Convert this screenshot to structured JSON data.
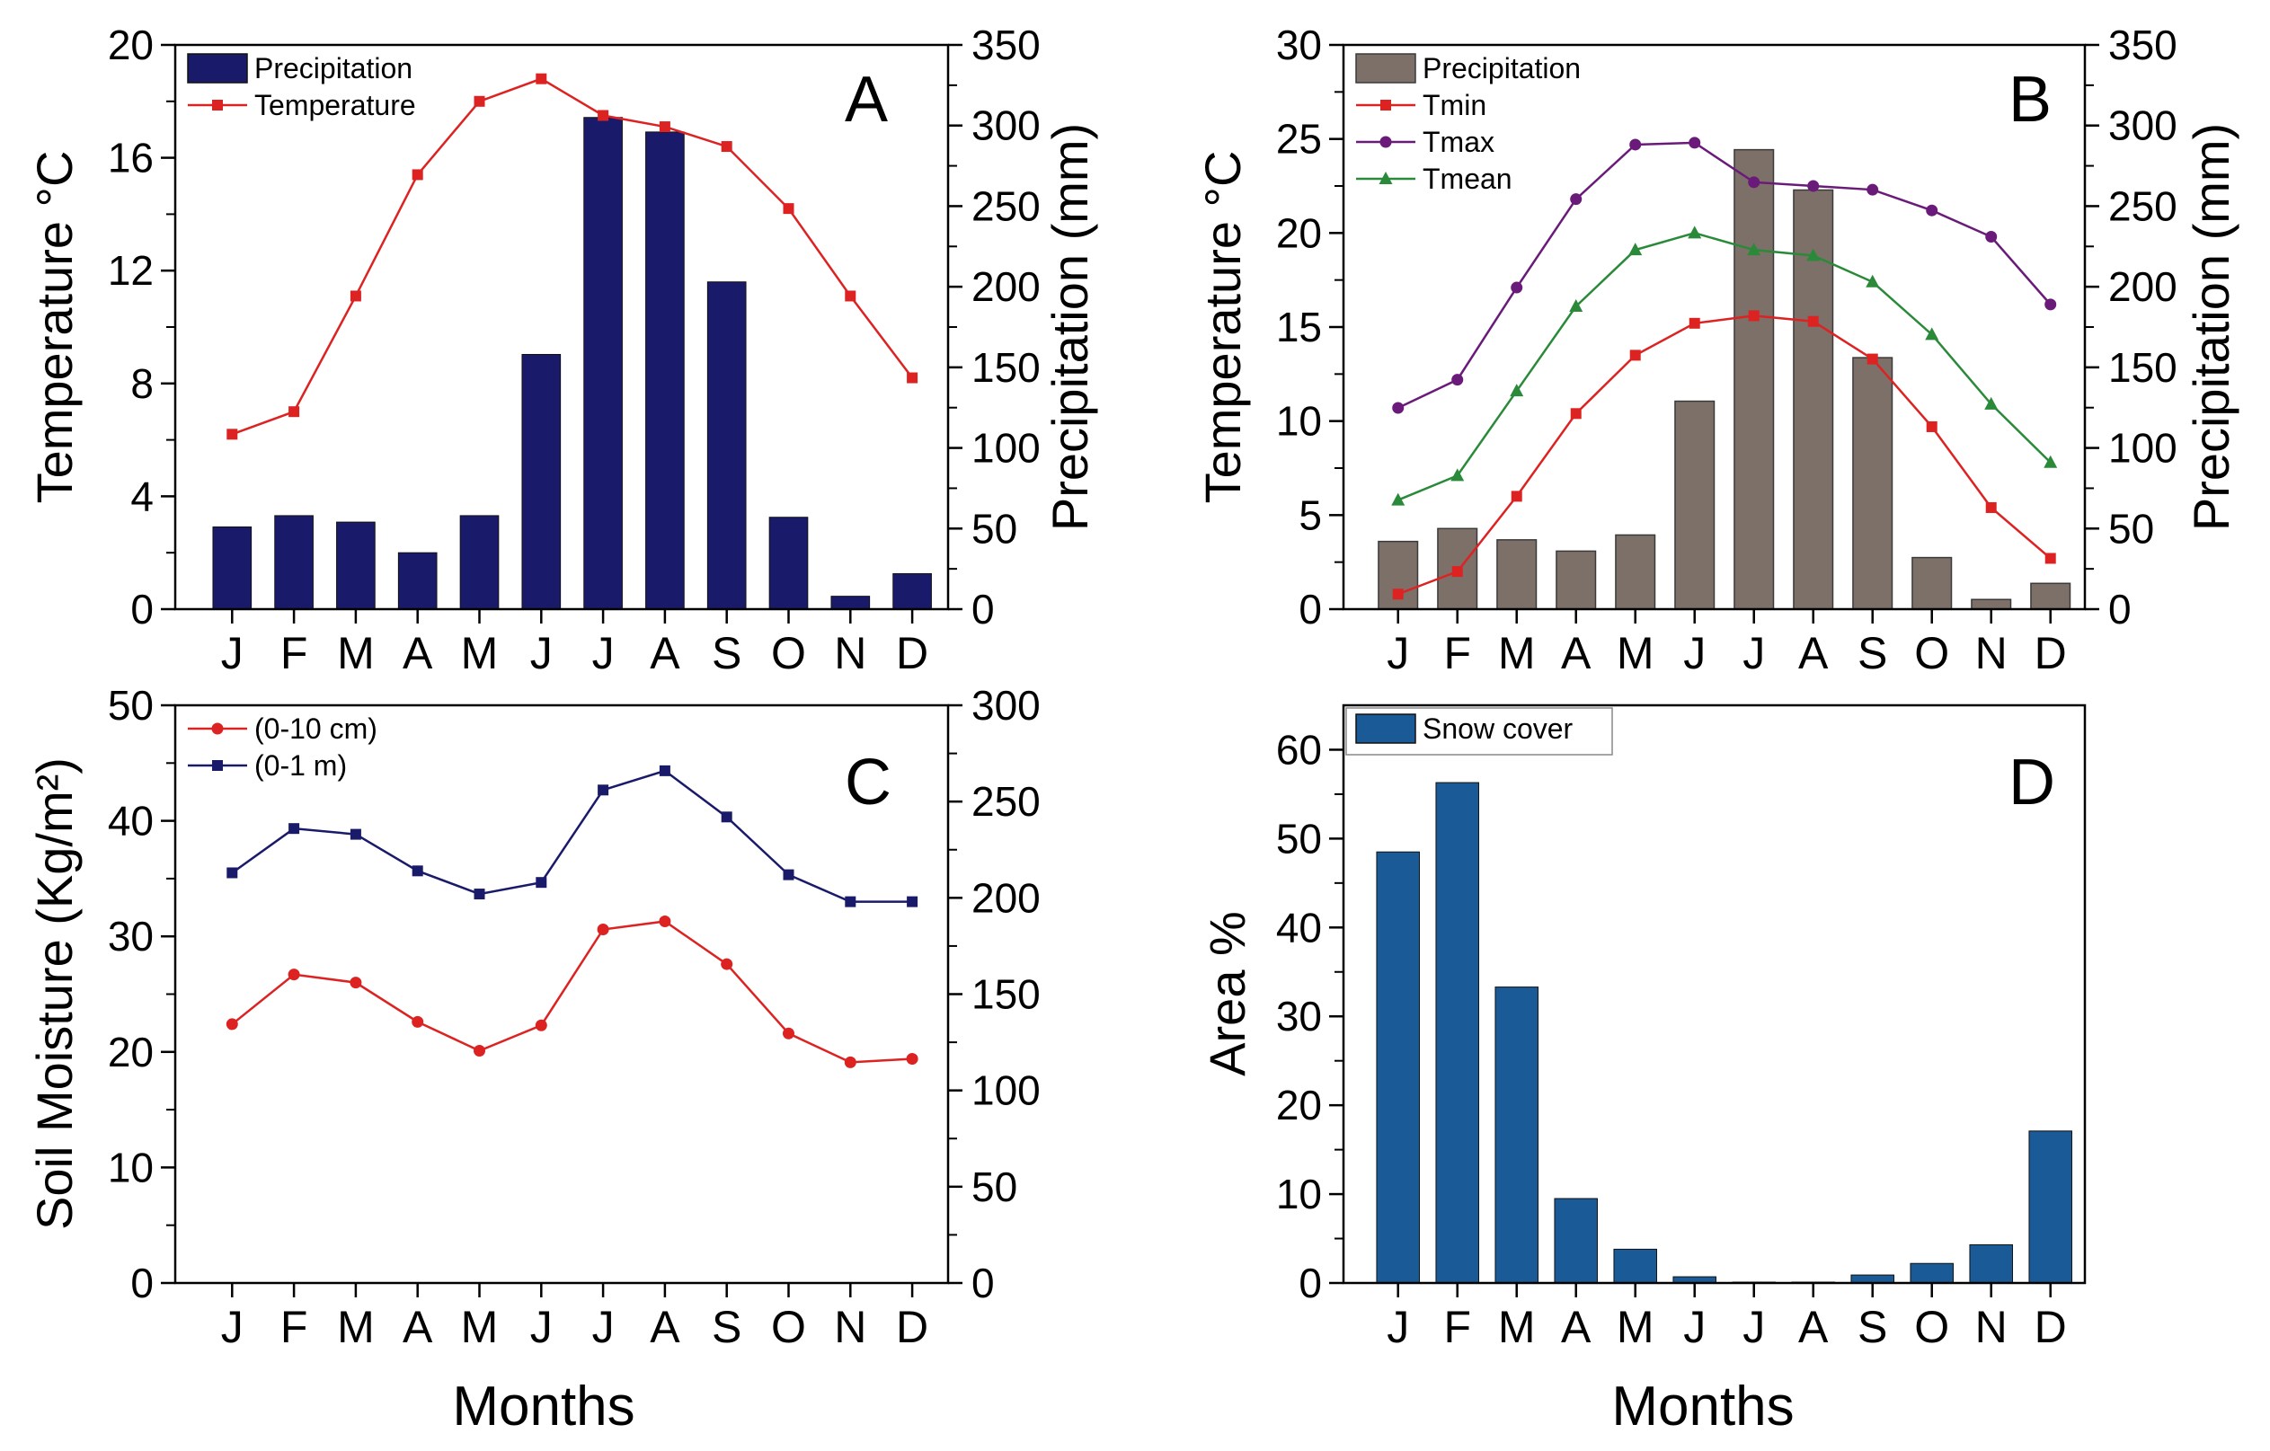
{
  "chart_data": [
    {
      "panel": "A",
      "type": "bar+line",
      "categories": [
        "J",
        "F",
        "M",
        "A",
        "M",
        "J",
        "J",
        "A",
        "S",
        "O",
        "N",
        "D"
      ],
      "series": [
        {
          "name": "Precipitation",
          "kind": "bar",
          "axis": "right",
          "color": "#1a1a6b",
          "values": [
            51,
            58,
            54,
            35,
            58,
            158,
            305,
            296,
            203,
            57,
            8,
            22
          ]
        },
        {
          "name": "Temperature",
          "kind": "line",
          "axis": "left",
          "color": "#dd2222",
          "marker": "square",
          "values": [
            6.2,
            7.0,
            11.1,
            15.4,
            18.0,
            18.8,
            17.5,
            17.1,
            16.4,
            14.2,
            11.1,
            8.2
          ]
        }
      ],
      "ylabel": "Temperature °C",
      "ylabel_right": "Precipitation (mm)",
      "ylim": [
        0,
        20
      ],
      "yticks": [
        0,
        4,
        8,
        12,
        16,
        20
      ],
      "ylim_right": [
        0,
        350
      ],
      "yticks_right": [
        0,
        50,
        100,
        150,
        200,
        250,
        300,
        350
      ],
      "legend": "top-left"
    },
    {
      "panel": "B",
      "type": "bar+line",
      "categories": [
        "J",
        "F",
        "M",
        "A",
        "M",
        "J",
        "J",
        "A",
        "S",
        "O",
        "N",
        "D"
      ],
      "series": [
        {
          "name": "Precipitation",
          "kind": "bar",
          "axis": "right",
          "color": "#7d7068",
          "values": [
            42,
            50,
            43,
            36,
            46,
            129,
            285,
            260,
            156,
            32,
            6,
            16
          ]
        },
        {
          "name": "Tmin",
          "kind": "line",
          "axis": "left",
          "color": "#dd2222",
          "marker": "square",
          "values": [
            0.8,
            2.0,
            6.0,
            10.4,
            13.5,
            15.2,
            15.6,
            15.3,
            13.3,
            9.7,
            5.4,
            2.7
          ]
        },
        {
          "name": "Tmax",
          "kind": "line",
          "axis": "left",
          "color": "#6a1b7a",
          "marker": "circle",
          "values": [
            10.7,
            12.2,
            17.1,
            21.8,
            24.7,
            24.8,
            22.7,
            22.5,
            22.3,
            21.2,
            19.8,
            16.2
          ]
        },
        {
          "name": "Tmean",
          "kind": "line",
          "axis": "left",
          "color": "#2a8a3a",
          "marker": "triangle",
          "values": [
            5.8,
            7.1,
            11.6,
            16.1,
            19.1,
            20.0,
            19.1,
            18.8,
            17.4,
            14.6,
            10.9,
            7.8
          ]
        }
      ],
      "ylabel": "Temperature °C",
      "ylabel_right": "Precipitation (mm)",
      "ylim": [
        0,
        30
      ],
      "yticks": [
        0,
        5,
        10,
        15,
        20,
        25,
        30
      ],
      "ylim_right": [
        0,
        350
      ],
      "yticks_right": [
        0,
        50,
        100,
        150,
        200,
        250,
        300,
        350
      ],
      "legend": "top-left"
    },
    {
      "panel": "C",
      "type": "line",
      "categories": [
        "J",
        "F",
        "M",
        "A",
        "M",
        "J",
        "J",
        "A",
        "S",
        "O",
        "N",
        "D"
      ],
      "series": [
        {
          "name": "(0-10 cm)",
          "kind": "line",
          "axis": "left",
          "color": "#dd2222",
          "marker": "circle",
          "values": [
            22.4,
            26.7,
            26.0,
            22.6,
            20.1,
            22.3,
            30.6,
            31.3,
            27.6,
            21.6,
            19.1,
            19.4
          ]
        },
        {
          "name": "(0-1 m)",
          "kind": "line",
          "axis": "right",
          "color": "#1a1a6b",
          "marker": "square",
          "values": [
            213,
            236,
            233,
            214,
            202,
            208,
            256,
            266,
            242,
            212,
            198,
            198
          ]
        }
      ],
      "ylabel": "Soil Moisture (Kg/m²)",
      "ylabel_color": "#000000",
      "ylim": [
        0,
        50
      ],
      "yticks": [
        0,
        10,
        20,
        30,
        40,
        50
      ],
      "yticks_color": "#ee5511",
      "ylim_right": [
        0,
        300
      ],
      "yticks_right": [
        0,
        50,
        100,
        150,
        200,
        250,
        300
      ],
      "yticks_right_color": "#1a2a8a",
      "xlabel": "Months",
      "legend": "top-left"
    },
    {
      "panel": "D",
      "type": "bar",
      "categories": [
        "J",
        "F",
        "M",
        "A",
        "M",
        "J",
        "J",
        "A",
        "S",
        "O",
        "N",
        "D"
      ],
      "series": [
        {
          "name": "Snow cover",
          "kind": "bar",
          "axis": "left",
          "color": "#1a5a96",
          "values": [
            48.5,
            56.3,
            33.3,
            9.5,
            3.8,
            0.7,
            0.1,
            0.1,
            0.9,
            2.2,
            4.3,
            17.1
          ]
        }
      ],
      "ylabel": "Area %",
      "ylim": [
        0,
        65
      ],
      "yticks": [
        0,
        10,
        20,
        30,
        40,
        50,
        60
      ],
      "xlabel": "Months",
      "legend": "top-left"
    }
  ],
  "panels": {
    "a": {
      "letter": "A"
    },
    "b": {
      "letter": "B"
    },
    "c": {
      "letter": "C",
      "xlabel": "Months"
    },
    "d": {
      "letter": "D",
      "xlabel": "Months"
    }
  }
}
